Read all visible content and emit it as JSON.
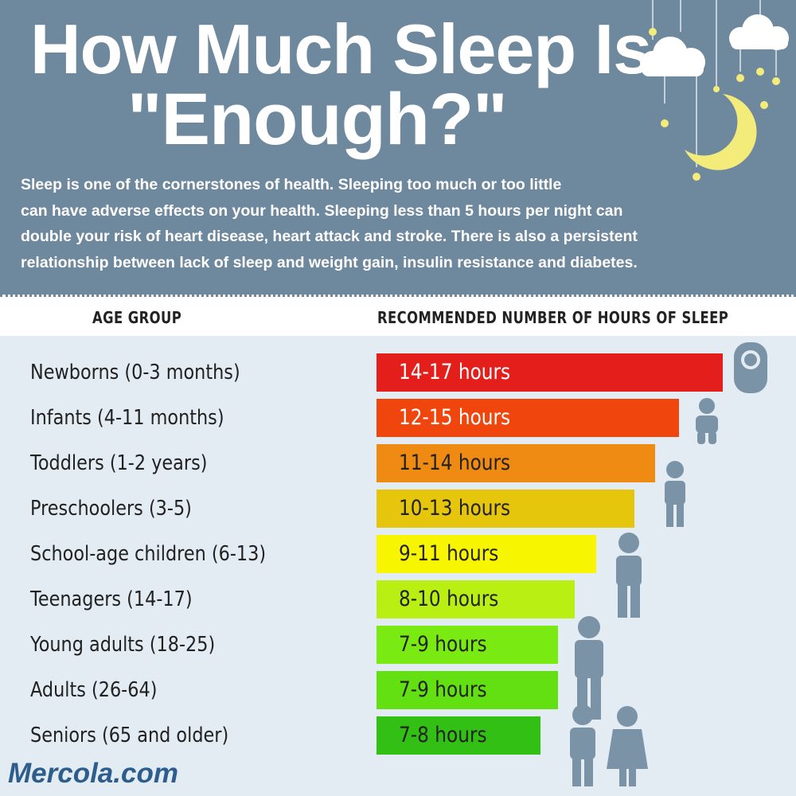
{
  "header": {
    "title_line1": "How Much Sleep Is",
    "title_line2": "\"Enough?\"",
    "intro_lines": [
      "Sleep is one of the cornerstones of health. Sleeping too much or too little",
      "can have adverse effects on your health. Sleeping less than 5 hours per night can",
      "double your risk of heart disease, heart attack and stroke. There is also a persistent",
      "relationship between lack of sleep and weight gain, insulin resistance and diabetes."
    ]
  },
  "table": {
    "headers": [
      "AGE GROUP",
      "RECOMMENDED NUMBER OF HOURS OF SLEEP"
    ],
    "rows": [
      [
        "Newborns (0-3 months)",
        "14-17 hours"
      ],
      [
        "Infants (4-11 months)",
        "12-15 hours"
      ],
      [
        "Toddlers (1-2 years)",
        "11-14 hours"
      ],
      [
        "Preschoolers (3-5)",
        "10-13 hours"
      ],
      [
        "School-age children (6-13)",
        "9-11 hours"
      ],
      [
        "Teenagers (14-17)",
        "8-10 hours"
      ],
      [
        "Young adults (18-25)",
        "7-9 hours"
      ],
      [
        "Adults (26-64)",
        "7-9 hours"
      ],
      [
        "Seniors (65 and older)",
        "7-8 hours"
      ]
    ]
  },
  "footer": {
    "brand": "Mercola.com"
  }
}
